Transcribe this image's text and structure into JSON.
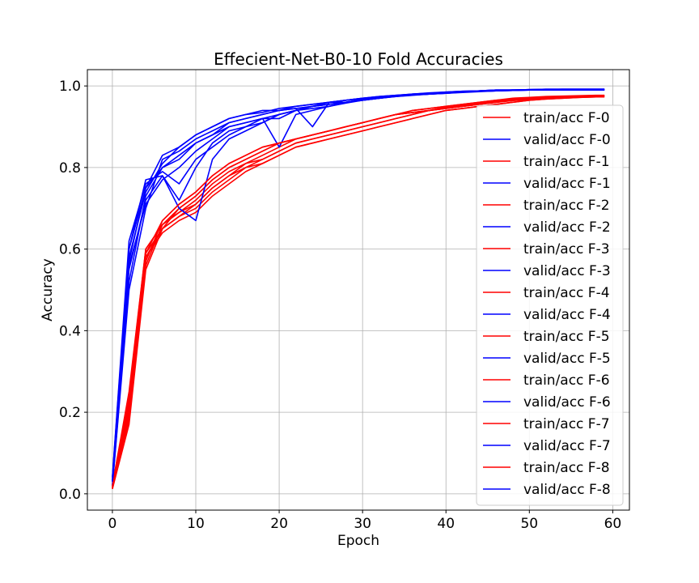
{
  "chart_data": {
    "type": "line",
    "title": "Effecient-Net-B0-10 Fold Accuracies",
    "xlabel": "Epoch",
    "ylabel": "Accuracy",
    "xlim": [
      -3,
      62
    ],
    "ylim": [
      -0.04,
      1.04
    ],
    "xticks": [
      0,
      10,
      20,
      30,
      40,
      50,
      60
    ],
    "yticks": [
      0.0,
      0.2,
      0.4,
      0.6,
      0.8,
      1.0
    ],
    "xtick_labels": [
      "0",
      "10",
      "20",
      "30",
      "40",
      "50",
      "60"
    ],
    "ytick_labels": [
      "0.0",
      "0.2",
      "0.4",
      "0.6",
      "0.8",
      "1.0"
    ],
    "grid": true,
    "legend_position": "center-right",
    "colors": {
      "train": "#ff0000",
      "valid": "#0000ff"
    },
    "x": [
      0,
      2,
      4,
      6,
      8,
      10,
      12,
      14,
      16,
      18,
      20,
      22,
      24,
      26,
      28,
      30,
      32,
      34,
      36,
      38,
      40,
      42,
      44,
      46,
      48,
      50,
      52,
      54,
      56,
      58,
      59
    ],
    "series": [
      {
        "name": "train/acc F-0",
        "color": "#ff0000",
        "values": [
          0.02,
          0.25,
          0.6,
          0.66,
          0.69,
          0.72,
          0.76,
          0.79,
          0.81,
          0.83,
          0.85,
          0.87,
          0.88,
          0.89,
          0.9,
          0.91,
          0.92,
          0.93,
          0.94,
          0.945,
          0.95,
          0.955,
          0.96,
          0.965,
          0.968,
          0.97,
          0.972,
          0.974,
          0.975,
          0.976,
          0.976
        ]
      },
      {
        "name": "valid/acc F-0",
        "color": "#0000ff",
        "values": [
          0.03,
          0.6,
          0.75,
          0.8,
          0.83,
          0.86,
          0.88,
          0.9,
          0.91,
          0.92,
          0.93,
          0.94,
          0.95,
          0.955,
          0.96,
          0.965,
          0.97,
          0.975,
          0.978,
          0.98,
          0.982,
          0.985,
          0.987,
          0.988,
          0.989,
          0.99,
          0.99,
          0.99,
          0.99,
          0.99,
          0.99
        ]
      },
      {
        "name": "train/acc F-1",
        "color": "#ff0000",
        "values": [
          0.015,
          0.2,
          0.58,
          0.65,
          0.68,
          0.71,
          0.75,
          0.78,
          0.8,
          0.82,
          0.84,
          0.86,
          0.87,
          0.88,
          0.89,
          0.9,
          0.91,
          0.92,
          0.93,
          0.94,
          0.945,
          0.95,
          0.955,
          0.96,
          0.965,
          0.968,
          0.97,
          0.972,
          0.974,
          0.975,
          0.975
        ]
      },
      {
        "name": "valid/acc F-1",
        "color": "#0000ff",
        "values": [
          0.03,
          0.55,
          0.72,
          0.78,
          0.72,
          0.8,
          0.86,
          0.89,
          0.9,
          0.92,
          0.92,
          0.94,
          0.945,
          0.95,
          0.958,
          0.965,
          0.97,
          0.974,
          0.977,
          0.98,
          0.982,
          0.984,
          0.986,
          0.988,
          0.989,
          0.99,
          0.99,
          0.99,
          0.991,
          0.991,
          0.991
        ]
      },
      {
        "name": "train/acc F-2",
        "color": "#ff0000",
        "values": [
          0.012,
          0.18,
          0.56,
          0.66,
          0.7,
          0.73,
          0.77,
          0.8,
          0.82,
          0.84,
          0.86,
          0.87,
          0.88,
          0.89,
          0.9,
          0.91,
          0.92,
          0.93,
          0.94,
          0.945,
          0.95,
          0.955,
          0.96,
          0.965,
          0.97,
          0.972,
          0.974,
          0.975,
          0.976,
          0.977,
          0.977
        ]
      },
      {
        "name": "valid/acc F-2",
        "color": "#0000ff",
        "values": [
          0.02,
          0.5,
          0.7,
          0.82,
          0.84,
          0.87,
          0.89,
          0.91,
          0.92,
          0.93,
          0.94,
          0.945,
          0.95,
          0.96,
          0.965,
          0.97,
          0.972,
          0.976,
          0.98,
          0.982,
          0.984,
          0.986,
          0.988,
          0.99,
          0.99,
          0.991,
          0.992,
          0.992,
          0.992,
          0.992,
          0.992
        ]
      },
      {
        "name": "train/acc F-3",
        "color": "#ff0000",
        "values": [
          0.02,
          0.22,
          0.59,
          0.65,
          0.68,
          0.7,
          0.74,
          0.77,
          0.8,
          0.81,
          0.83,
          0.85,
          0.86,
          0.87,
          0.88,
          0.89,
          0.9,
          0.91,
          0.92,
          0.93,
          0.94,
          0.945,
          0.95,
          0.955,
          0.96,
          0.965,
          0.968,
          0.97,
          0.972,
          0.973,
          0.973
        ]
      },
      {
        "name": "valid/acc F-3",
        "color": "#0000ff",
        "values": [
          0.04,
          0.62,
          0.76,
          0.79,
          0.76,
          0.82,
          0.85,
          0.88,
          0.9,
          0.91,
          0.93,
          0.94,
          0.95,
          0.955,
          0.96,
          0.966,
          0.97,
          0.975,
          0.978,
          0.98,
          0.983,
          0.985,
          0.987,
          0.988,
          0.99,
          0.99,
          0.99,
          0.991,
          0.991,
          0.991,
          0.991
        ]
      },
      {
        "name": "train/acc F-4",
        "color": "#ff0000",
        "values": [
          0.015,
          0.19,
          0.57,
          0.67,
          0.71,
          0.74,
          0.78,
          0.81,
          0.83,
          0.85,
          0.86,
          0.87,
          0.88,
          0.89,
          0.9,
          0.91,
          0.92,
          0.93,
          0.935,
          0.94,
          0.945,
          0.95,
          0.955,
          0.96,
          0.965,
          0.97,
          0.972,
          0.974,
          0.975,
          0.976,
          0.976
        ]
      },
      {
        "name": "valid/acc F-4",
        "color": "#0000ff",
        "values": [
          0.03,
          0.58,
          0.74,
          0.81,
          0.85,
          0.88,
          0.9,
          0.92,
          0.93,
          0.94,
          0.94,
          0.95,
          0.955,
          0.96,
          0.965,
          0.97,
          0.974,
          0.977,
          0.98,
          0.982,
          0.985,
          0.987,
          0.988,
          0.99,
          0.99,
          0.991,
          0.991,
          0.992,
          0.992,
          0.992,
          0.992
        ]
      },
      {
        "name": "train/acc F-5",
        "color": "#ff0000",
        "values": [
          0.02,
          0.24,
          0.6,
          0.66,
          0.69,
          0.71,
          0.75,
          0.78,
          0.81,
          0.82,
          0.84,
          0.86,
          0.87,
          0.88,
          0.89,
          0.9,
          0.91,
          0.92,
          0.93,
          0.94,
          0.945,
          0.95,
          0.955,
          0.96,
          0.964,
          0.967,
          0.97,
          0.972,
          0.973,
          0.974,
          0.974
        ]
      },
      {
        "name": "valid/acc F-5",
        "color": "#0000ff",
        "values": [
          0.03,
          0.56,
          0.71,
          0.77,
          0.8,
          0.84,
          0.87,
          0.9,
          0.91,
          0.92,
          0.85,
          0.93,
          0.94,
          0.95,
          0.96,
          0.965,
          0.97,
          0.974,
          0.978,
          0.98,
          0.982,
          0.985,
          0.987,
          0.988,
          0.989,
          0.99,
          0.99,
          0.99,
          0.99,
          0.99,
          0.99
        ]
      },
      {
        "name": "train/acc F-6",
        "color": "#ff0000",
        "values": [
          0.012,
          0.17,
          0.55,
          0.65,
          0.7,
          0.73,
          0.77,
          0.8,
          0.82,
          0.84,
          0.86,
          0.87,
          0.88,
          0.89,
          0.9,
          0.91,
          0.92,
          0.93,
          0.935,
          0.94,
          0.948,
          0.953,
          0.958,
          0.963,
          0.967,
          0.97,
          0.972,
          0.974,
          0.975,
          0.976,
          0.976
        ]
      },
      {
        "name": "valid/acc F-6",
        "color": "#0000ff",
        "values": [
          0.02,
          0.52,
          0.73,
          0.8,
          0.82,
          0.86,
          0.88,
          0.91,
          0.92,
          0.93,
          0.94,
          0.945,
          0.9,
          0.96,
          0.96,
          0.968,
          0.972,
          0.976,
          0.979,
          0.981,
          0.984,
          0.986,
          0.988,
          0.989,
          0.99,
          0.99,
          0.991,
          0.991,
          0.991,
          0.991,
          0.991
        ]
      },
      {
        "name": "train/acc F-7",
        "color": "#ff0000",
        "values": [
          0.018,
          0.21,
          0.58,
          0.64,
          0.67,
          0.69,
          0.73,
          0.76,
          0.79,
          0.81,
          0.83,
          0.85,
          0.86,
          0.87,
          0.88,
          0.89,
          0.9,
          0.91,
          0.92,
          0.93,
          0.94,
          0.945,
          0.95,
          0.955,
          0.96,
          0.965,
          0.968,
          0.97,
          0.972,
          0.973,
          0.973
        ]
      },
      {
        "name": "valid/acc F-7",
        "color": "#0000ff",
        "values": [
          0.04,
          0.6,
          0.77,
          0.78,
          0.7,
          0.67,
          0.82,
          0.87,
          0.89,
          0.91,
          0.93,
          0.94,
          0.95,
          0.955,
          0.96,
          0.966,
          0.97,
          0.975,
          0.978,
          0.98,
          0.983,
          0.985,
          0.987,
          0.988,
          0.99,
          0.99,
          0.99,
          0.99,
          0.99,
          0.99,
          0.99
        ]
      },
      {
        "name": "train/acc F-8",
        "color": "#ff0000",
        "values": [
          0.015,
          0.23,
          0.59,
          0.67,
          0.71,
          0.74,
          0.78,
          0.81,
          0.83,
          0.85,
          0.86,
          0.87,
          0.88,
          0.89,
          0.9,
          0.91,
          0.92,
          0.93,
          0.935,
          0.94,
          0.947,
          0.952,
          0.957,
          0.962,
          0.966,
          0.969,
          0.972,
          0.974,
          0.975,
          0.976,
          0.976
        ]
      },
      {
        "name": "valid/acc F-8",
        "color": "#0000ff",
        "values": [
          0.03,
          0.57,
          0.75,
          0.83,
          0.85,
          0.88,
          0.9,
          0.92,
          0.93,
          0.935,
          0.945,
          0.95,
          0.955,
          0.96,
          0.965,
          0.97,
          0.974,
          0.977,
          0.98,
          0.983,
          0.985,
          0.987,
          0.988,
          0.99,
          0.99,
          0.991,
          0.992,
          0.992,
          0.992,
          0.992,
          0.992
        ]
      }
    ]
  }
}
